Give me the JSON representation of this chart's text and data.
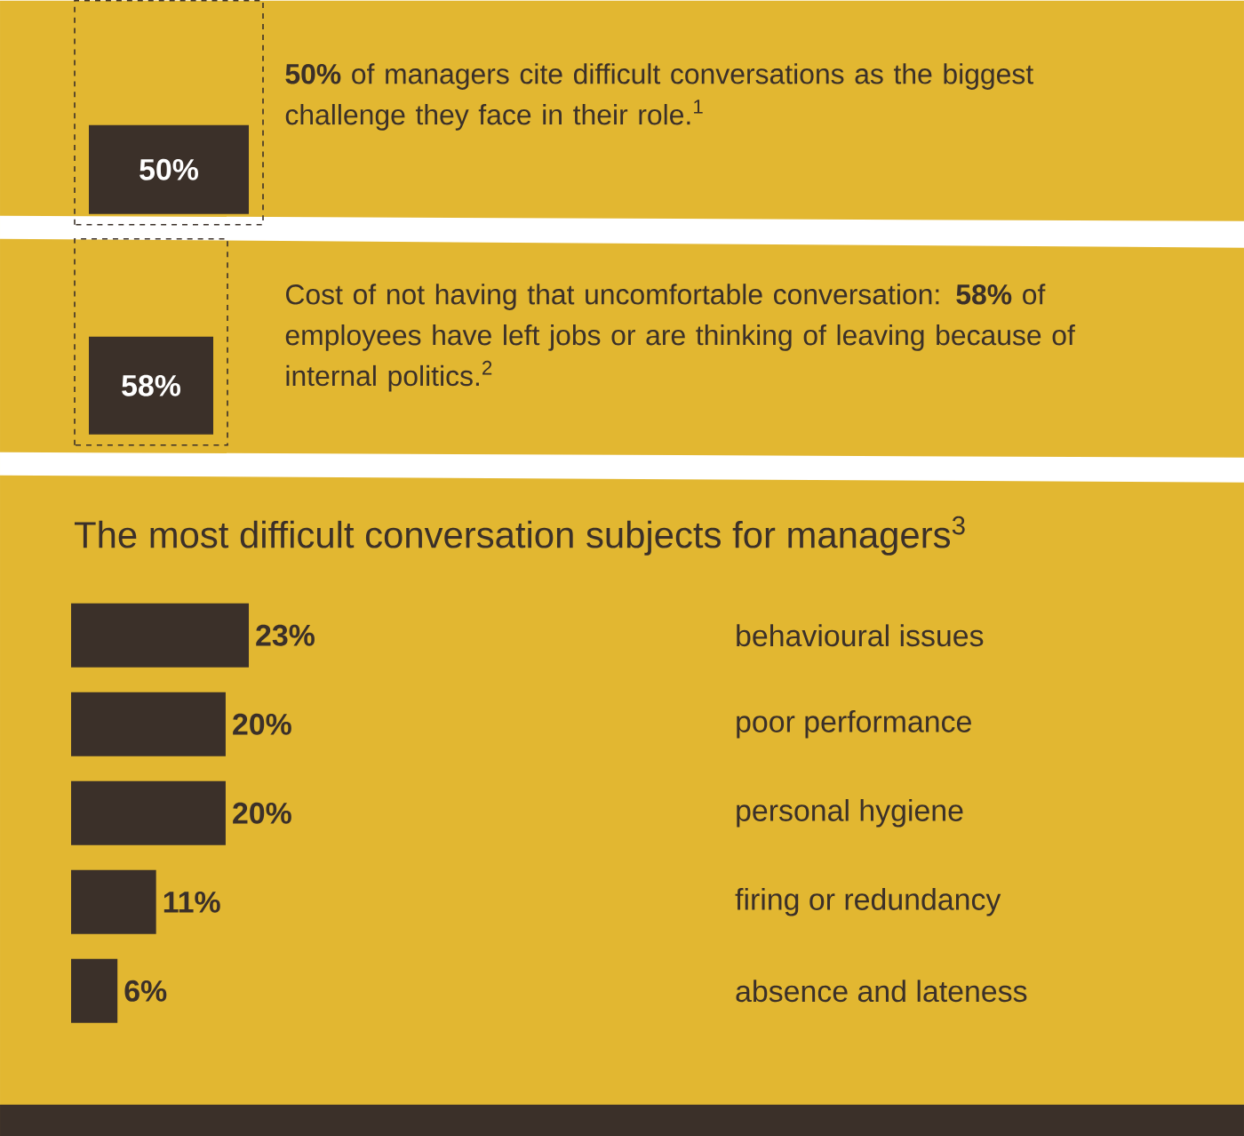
{
  "chart_data": {
    "type": "bar",
    "orientation": "horizontal",
    "title": "The most difficult conversation subjects for managers$^{3}$",
    "categories": [
      "behavioural issues",
      "poor performance",
      "personal hygiene",
      "firing or redundancy",
      "absence and lateness"
    ],
    "values": [
      23,
      20,
      20,
      11,
      6
    ],
    "value_labels": [
      "23%",
      "20%",
      "20%",
      "11%",
      "6%"
    ],
    "color": "#3b3029",
    "annotations": [
      "**50%** of managers cite difficult conversations as the biggest challenge they face in their role.$^{1}$",
      "50%",
      "Cost of not having that uncomfortable conversation: **58%** of employees have left jobs or are thinking of leaving because of internal politics.$^{2}$",
      "58%"
    ]
  }
}
